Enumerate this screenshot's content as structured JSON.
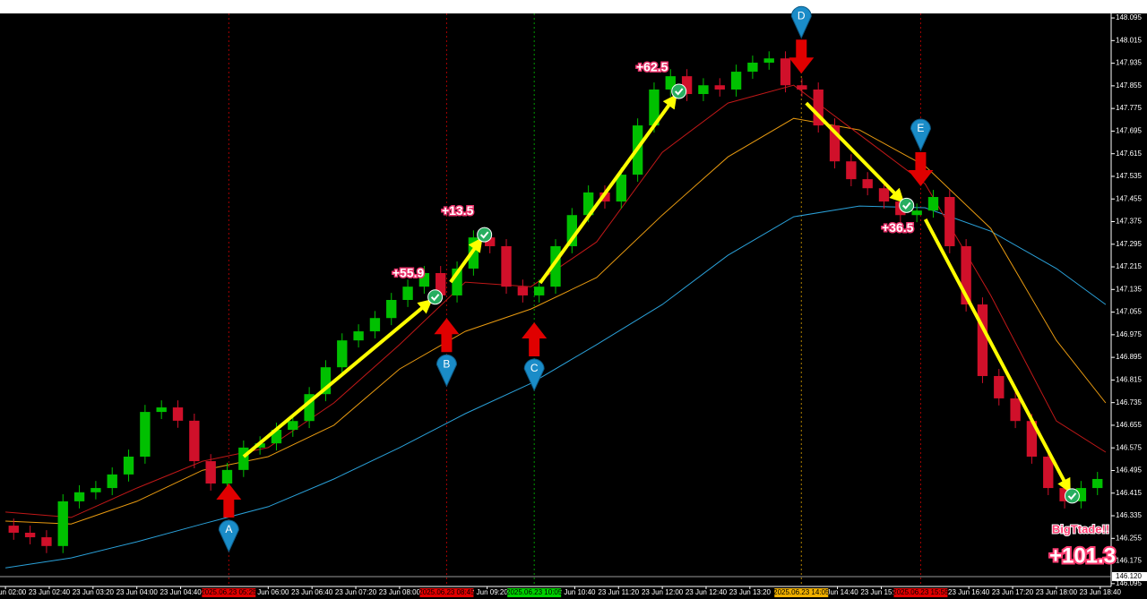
{
  "chart_data": {
    "type": "candlestick",
    "up_color": "#00c000",
    "down_color": "#d0102a",
    "xlim": [
      115,
      1130
    ],
    "ylim": [
      146.085,
      148.111
    ],
    "yticks": [
      148.095,
      148.015,
      147.935,
      147.855,
      147.775,
      147.695,
      147.615,
      147.535,
      147.455,
      147.375,
      147.295,
      147.215,
      147.135,
      147.055,
      146.975,
      146.895,
      146.815,
      146.735,
      146.655,
      146.575,
      146.495,
      146.415,
      146.335,
      146.255,
      146.175,
      146.095
    ],
    "xticks": [
      {
        "value": 120,
        "label": "23 Jun 02:00"
      },
      {
        "value": 160,
        "label": "23 Jun 02:40"
      },
      {
        "value": 200,
        "label": "23 Jun 03:20"
      },
      {
        "value": 240,
        "label": "23 Jun 04:00"
      },
      {
        "value": 280,
        "label": "23 Jun 04:40"
      },
      {
        "value": 360,
        "label": "23 Jun 06:00"
      },
      {
        "value": 400,
        "label": "23 Jun 06:40"
      },
      {
        "value": 440,
        "label": "23 Jun 07:20"
      },
      {
        "value": 480,
        "label": "23 Jun 08:00"
      },
      {
        "value": 560,
        "label": "23 Jun 09:20"
      },
      {
        "value": 640,
        "label": "23 Jun 10:40"
      },
      {
        "value": 680,
        "label": "23 Jun 11:20"
      },
      {
        "value": 720,
        "label": "23 Jun 12:00"
      },
      {
        "value": 760,
        "label": "23 Jun 12:40"
      },
      {
        "value": 800,
        "label": "23 Jun 13:20"
      },
      {
        "value": 880,
        "label": "23 Jun 14:40"
      },
      {
        "value": 920,
        "label": "23 Jun 15:20"
      },
      {
        "value": 1000,
        "label": "23 Jun 16:40"
      },
      {
        "value": 1040,
        "label": "23 Jun 17:20"
      },
      {
        "value": 1080,
        "label": "23 Jun 18:00"
      },
      {
        "value": 1120,
        "label": "23 Jun 18:40"
      }
    ],
    "x": [
      120,
      135,
      150,
      165,
      180,
      195,
      210,
      225,
      240,
      255,
      270,
      285,
      300,
      315,
      330,
      345,
      360,
      375,
      390,
      405,
      420,
      435,
      450,
      465,
      480,
      495,
      510,
      525,
      540,
      555,
      570,
      585,
      600,
      615,
      630,
      645,
      660,
      675,
      690,
      705,
      720,
      735,
      750,
      765,
      780,
      795,
      810,
      825,
      840,
      855,
      870,
      885,
      900,
      915,
      930,
      945,
      960,
      975,
      990,
      1005,
      1020,
      1035,
      1050,
      1065,
      1080,
      1095,
      1110
    ],
    "open": [
      146.3,
      146.275,
      146.259,
      146.228,
      146.386,
      146.418,
      146.433,
      146.481,
      146.544,
      146.702,
      146.718,
      146.671,
      146.528,
      146.449,
      146.497,
      146.576,
      146.591,
      146.639,
      146.67,
      146.765,
      146.86,
      146.955,
      146.987,
      147.034,
      147.098,
      147.145,
      147.193,
      147.114,
      147.209,
      147.319,
      147.288,
      147.145,
      147.114,
      147.145,
      147.288,
      147.398,
      147.478,
      147.446,
      147.541,
      147.715,
      147.842,
      147.889,
      147.826,
      147.857,
      147.842,
      147.905,
      147.937,
      147.952,
      147.857,
      147.842,
      147.715,
      147.588,
      147.525,
      147.493,
      147.446,
      147.398,
      147.414,
      147.462,
      147.288,
      147.082,
      146.829,
      146.75,
      146.67,
      146.544,
      146.433,
      146.386,
      146.433
    ],
    "high": [
      146.325,
      146.3,
      146.284,
      146.411,
      146.443,
      146.458,
      146.506,
      146.569,
      146.727,
      146.743,
      146.743,
      146.696,
      146.553,
      146.522,
      146.601,
      146.616,
      146.664,
      146.695,
      146.79,
      146.885,
      146.98,
      147.012,
      147.059,
      147.123,
      147.17,
      147.218,
      147.218,
      147.234,
      147.344,
      147.344,
      147.313,
      147.17,
      147.17,
      147.313,
      147.423,
      147.503,
      147.503,
      147.566,
      147.74,
      147.867,
      147.914,
      147.914,
      147.882,
      147.882,
      147.93,
      147.962,
      147.977,
      147.977,
      147.882,
      147.867,
      147.74,
      147.613,
      147.55,
      147.518,
      147.471,
      147.439,
      147.487,
      147.487,
      147.313,
      147.107,
      146.854,
      146.775,
      146.695,
      146.569,
      146.458,
      146.458,
      146.49
    ],
    "low": [
      146.25,
      146.234,
      146.203,
      146.203,
      146.361,
      146.393,
      146.408,
      146.456,
      146.519,
      146.677,
      146.646,
      146.503,
      146.424,
      146.424,
      146.472,
      146.551,
      146.566,
      146.614,
      146.645,
      146.74,
      146.835,
      146.93,
      146.962,
      147.009,
      147.073,
      147.12,
      147.089,
      147.089,
      147.184,
      147.263,
      147.12,
      147.089,
      147.089,
      147.12,
      147.263,
      147.373,
      147.421,
      147.421,
      147.516,
      147.69,
      147.817,
      147.801,
      147.801,
      147.817,
      147.817,
      147.88,
      147.912,
      147.832,
      147.817,
      147.69,
      147.563,
      147.5,
      147.468,
      147.421,
      147.373,
      147.373,
      147.389,
      147.263,
      147.057,
      146.804,
      146.725,
      146.645,
      146.519,
      146.408,
      146.361,
      146.361,
      146.408
    ],
    "close": [
      146.275,
      146.259,
      146.228,
      146.386,
      146.418,
      146.433,
      146.481,
      146.544,
      146.702,
      146.718,
      146.671,
      146.528,
      146.449,
      146.497,
      146.576,
      146.591,
      146.639,
      146.67,
      146.765,
      146.86,
      146.955,
      146.987,
      147.034,
      147.098,
      147.145,
      147.193,
      147.114,
      147.209,
      147.319,
      147.288,
      147.145,
      147.114,
      147.145,
      147.288,
      147.398,
      147.478,
      147.446,
      147.541,
      147.715,
      147.842,
      147.889,
      147.826,
      147.857,
      147.842,
      147.905,
      147.937,
      147.952,
      147.857,
      147.842,
      147.715,
      147.588,
      147.525,
      147.493,
      147.446,
      147.398,
      147.414,
      147.462,
      147.288,
      147.082,
      146.829,
      146.75,
      146.67,
      146.544,
      146.433,
      146.386,
      146.433,
      146.465
    ],
    "indicators": [
      {
        "color": "#2aa0d8",
        "x": [
          120,
          180,
          240,
          300,
          360,
          420,
          480,
          540,
          600,
          660,
          720,
          780,
          840,
          900,
          960,
          1020,
          1080,
          1125
        ],
        "values": [
          146.151,
          146.186,
          146.243,
          146.306,
          146.367,
          146.465,
          146.576,
          146.696,
          146.803,
          146.94,
          147.082,
          147.256,
          147.392,
          147.43,
          147.424,
          147.341,
          147.209,
          147.082
        ]
      },
      {
        "color": "#e89a10",
        "x": [
          120,
          180,
          240,
          300,
          360,
          420,
          480,
          540,
          600,
          660,
          720,
          780,
          840,
          900,
          960,
          1020,
          1080,
          1125
        ],
        "values": [
          146.316,
          146.306,
          146.386,
          146.496,
          146.544,
          146.655,
          146.854,
          146.987,
          147.066,
          147.177,
          147.398,
          147.604,
          147.74,
          147.699,
          147.572,
          147.351,
          146.955,
          146.734
        ]
      },
      {
        "color": "#c01818",
        "x": [
          120,
          180,
          240,
          300,
          360,
          420,
          480,
          540,
          600,
          660,
          720,
          780,
          840,
          900,
          960,
          1020,
          1080,
          1125
        ],
        "values": [
          146.348,
          146.329,
          146.433,
          146.528,
          146.576,
          146.734,
          146.94,
          147.161,
          147.145,
          147.303,
          147.62,
          147.794,
          147.857,
          147.683,
          147.509,
          147.114,
          146.67,
          146.56
        ]
      }
    ],
    "current_price": {
      "value": 146.12,
      "label": "146.120"
    },
    "vlines": [
      {
        "value": 324,
        "label": "2025.06.23 05:25",
        "color": "#e00000"
      },
      {
        "value": 523,
        "label": "2025.06.23 08:45",
        "color": "#e00000"
      },
      {
        "value": 603,
        "label": "2025.06.23 10:05",
        "color": "#00d000"
      },
      {
        "value": 847,
        "label": "2025.06.23 14:05",
        "color": "#f0b000"
      },
      {
        "value": 956,
        "label": "2025.06.23 15:55",
        "color": "#e00000"
      }
    ],
    "signals": [
      {
        "label": "A",
        "x": 324,
        "y": 146.449,
        "direction": "up"
      },
      {
        "label": "B",
        "x": 523,
        "y": 147.034,
        "direction": "up"
      },
      {
        "label": "C",
        "x": 603,
        "y": 147.019,
        "direction": "up"
      },
      {
        "label": "D",
        "x": 847,
        "y": 147.898,
        "direction": "down"
      },
      {
        "label": "E",
        "x": 956,
        "y": 147.5,
        "direction": "down"
      }
    ],
    "trades": [
      {
        "x": [
          337.6,
          506.2
        ],
        "y": [
          146.544,
          147.088
        ],
        "label": "+55.9"
      },
      {
        "x": [
          526.6,
          552.8
        ],
        "y": [
          147.161,
          147.303
        ],
        "label": "+13.5"
      },
      {
        "x": [
          608.4,
          730.4
        ],
        "y": [
          147.158,
          147.81
        ],
        "label": "+62.5"
      },
      {
        "x": [
          851.5,
          937.4
        ],
        "y": [
          147.794,
          147.455
        ],
        "label": "+36.5"
      },
      {
        "x": [
          960.3,
          1090.5
        ],
        "y": [
          147.383,
          146.433
        ]
      }
    ],
    "summary": {
      "title": "BigTtade!!",
      "label": "+101.3"
    }
  }
}
